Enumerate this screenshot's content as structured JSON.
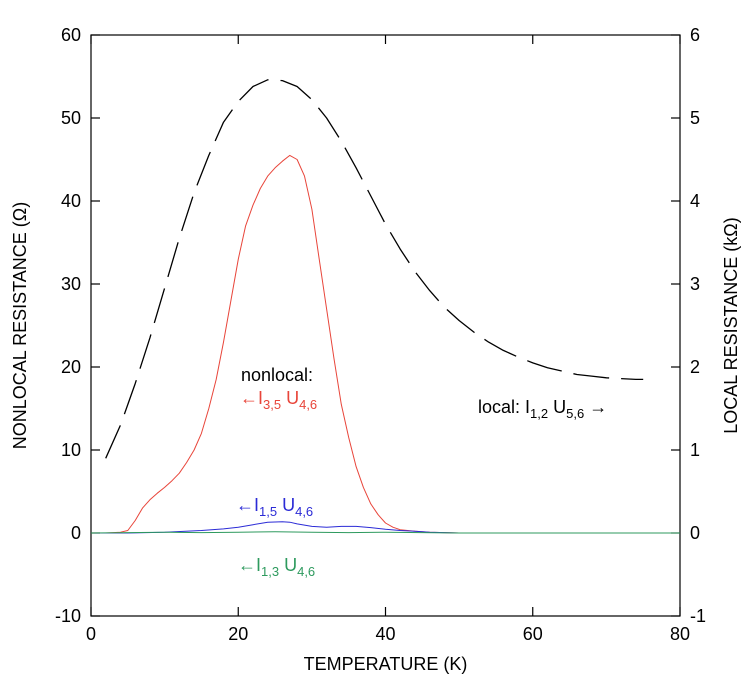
{
  "chart_data": {
    "type": "line",
    "xlabel": "TEMPERATURE (K)",
    "ylabel": "NONLOCAL RESISTANCE (Ω)",
    "y2label": "LOCAL RESISTANCE (kΩ)",
    "xlim": [
      0,
      80
    ],
    "ylim": [
      -10,
      60
    ],
    "y2lim": [
      -1,
      6
    ],
    "xticks": [
      0,
      20,
      40,
      60,
      80
    ],
    "yticks": [
      -10,
      0,
      10,
      20,
      30,
      40,
      50,
      60
    ],
    "y2ticks": [
      -1,
      0,
      1,
      2,
      3,
      4,
      5,
      6
    ],
    "grid": false,
    "annotations": {
      "nonlocal_title": "nonlocal:",
      "i35": {
        "arrow": "←",
        "main": "I",
        "sub": "3,5",
        "mid": " U",
        "sub2": "4,6"
      },
      "i15": {
        "arrow": "←",
        "main": "I",
        "sub": "1,5",
        "mid": " U",
        "sub2": "4,6"
      },
      "i13": {
        "arrow": "←",
        "main": "I",
        "sub": "1,3",
        "mid": " U",
        "sub2": "4,6"
      },
      "local": {
        "prefix": "local: ",
        "main": "I",
        "sub": "1,2",
        "mid": " U",
        "sub2": "5,6",
        "arrow": " →"
      }
    },
    "series": [
      {
        "key": "local",
        "axis": "right",
        "color": "#000000",
        "dash": true,
        "x": [
          2,
          4,
          6,
          8,
          10,
          12,
          14,
          16,
          18,
          20,
          22,
          24,
          26,
          28,
          30,
          32,
          34,
          36,
          38,
          40,
          42,
          44,
          46,
          48,
          50,
          52,
          54,
          56,
          58,
          60,
          62,
          64,
          66,
          68,
          70,
          72,
          74,
          75
        ],
        "y": [
          0.9,
          1.3,
          1.8,
          2.35,
          2.95,
          3.55,
          4.1,
          4.55,
          4.95,
          5.2,
          5.38,
          5.46,
          5.45,
          5.38,
          5.22,
          5.0,
          4.72,
          4.4,
          4.06,
          3.72,
          3.42,
          3.15,
          2.92,
          2.72,
          2.56,
          2.42,
          2.3,
          2.2,
          2.12,
          2.05,
          1.99,
          1.95,
          1.91,
          1.89,
          1.87,
          1.86,
          1.85,
          1.85
        ]
      },
      {
        "key": "i35",
        "axis": "left",
        "color": "#e8453a",
        "dash": false,
        "x": [
          0,
          2,
          4,
          5,
          6,
          7,
          8,
          9,
          10,
          11,
          12,
          13,
          14,
          15,
          16,
          17,
          18,
          19,
          20,
          21,
          22,
          23,
          24,
          25,
          26,
          27,
          28,
          29,
          30,
          31,
          32,
          33,
          34,
          35,
          36,
          37,
          38,
          39,
          40,
          41,
          42,
          44,
          46,
          48,
          50,
          55,
          60,
          70,
          80
        ],
        "y": [
          0,
          0,
          0.1,
          0.3,
          1.5,
          3.0,
          4.0,
          4.8,
          5.5,
          6.3,
          7.2,
          8.5,
          10.0,
          12.0,
          15.0,
          18.5,
          23.0,
          28.0,
          33.0,
          37.0,
          39.5,
          41.5,
          43.0,
          44.0,
          44.8,
          45.5,
          45.0,
          43.0,
          39.0,
          33.0,
          27.0,
          21.0,
          15.5,
          11.5,
          8.0,
          5.5,
          3.5,
          2.2,
          1.2,
          0.7,
          0.4,
          0.2,
          0.1,
          0.05,
          0,
          0,
          0,
          0,
          0
        ]
      },
      {
        "key": "i15",
        "axis": "left",
        "color": "#2b2bd6",
        "dash": false,
        "x": [
          0,
          5,
          10,
          15,
          18,
          20,
          22,
          24,
          26,
          27,
          28,
          30,
          32,
          34,
          36,
          38,
          40,
          42,
          44,
          46,
          48,
          50,
          55,
          60,
          70,
          80
        ],
        "y": [
          0,
          0,
          0.1,
          0.3,
          0.5,
          0.7,
          1.0,
          1.3,
          1.35,
          1.3,
          1.1,
          0.8,
          0.7,
          0.8,
          0.8,
          0.65,
          0.45,
          0.3,
          0.2,
          0.1,
          0.05,
          0,
          0,
          0,
          0,
          0
        ]
      },
      {
        "key": "i13",
        "axis": "left",
        "color": "#2e9a5e",
        "dash": false,
        "x": [
          0,
          5,
          10,
          15,
          20,
          25,
          30,
          35,
          40,
          45,
          50,
          55,
          60,
          70,
          80
        ],
        "y": [
          0,
          0.05,
          0.1,
          0.05,
          0.1,
          0.15,
          0.1,
          0.05,
          0.1,
          0.05,
          0,
          0,
          0,
          0,
          0
        ]
      }
    ]
  }
}
